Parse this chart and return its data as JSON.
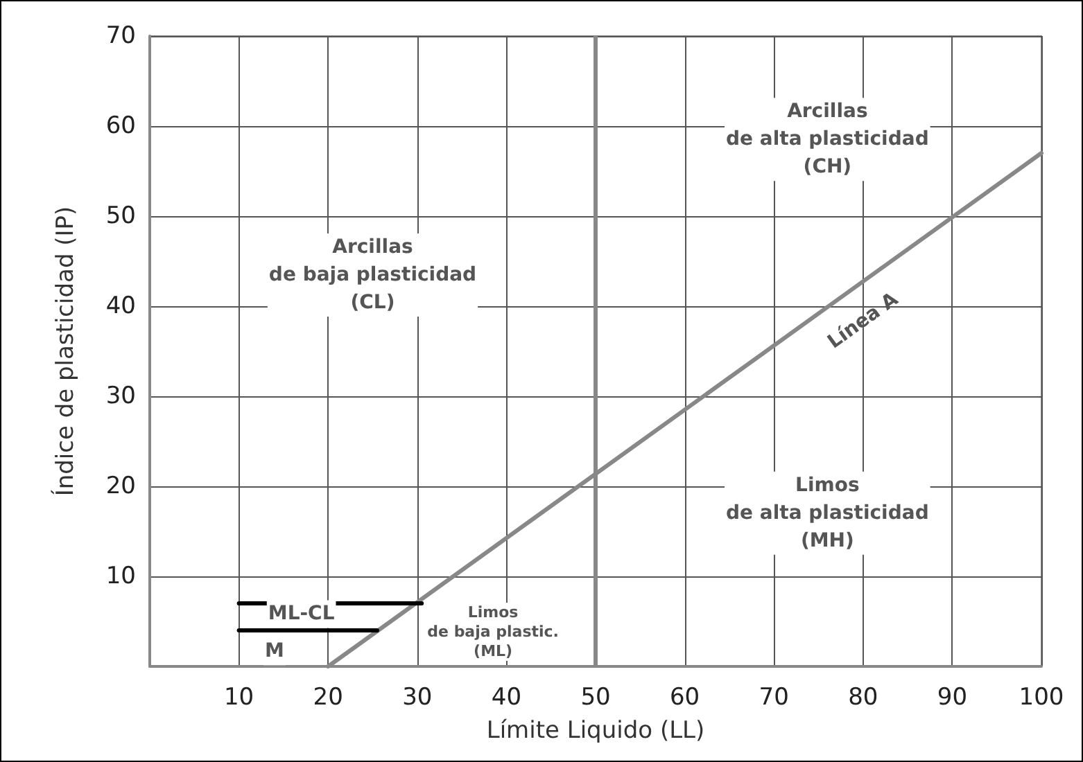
{
  "chart_data": {
    "type": "line",
    "xlabel": "Límite Liquido (LL)",
    "ylabel": "Índice de plasticidad (IP)",
    "xlim": [
      0,
      100
    ],
    "ylim": [
      0,
      70
    ],
    "xticks": [
      10,
      20,
      30,
      40,
      50,
      60,
      70,
      80,
      90,
      100
    ],
    "yticks": [
      10,
      20,
      30,
      40,
      50,
      60,
      70
    ],
    "grid": true,
    "marker": "none",
    "line_style": "solid",
    "series": [
      {
        "color": "#888888",
        "x": [
          20,
          100
        ],
        "values": [
          0,
          57
        ]
      },
      {
        "color": "#000000",
        "x": [
          10,
          30.5
        ],
        "values": [
          7,
          7
        ]
      },
      {
        "color": "#000000",
        "x": [
          10,
          25.5
        ],
        "values": [
          4,
          4
        ]
      }
    ],
    "ref_lines": [
      {
        "axis": "x",
        "value": 50,
        "color": "#888888"
      }
    ],
    "annotations": [
      "Arcillas\nde baja plasticidad\n(CL)",
      "Arcillas\nde alta plasticidad\n(CH)",
      "Limos\nde alta plasticidad\n(MH)",
      "Limos\nde baja plastic.\n(ML)",
      "ML-CL",
      "M",
      "Línea A"
    ]
  }
}
